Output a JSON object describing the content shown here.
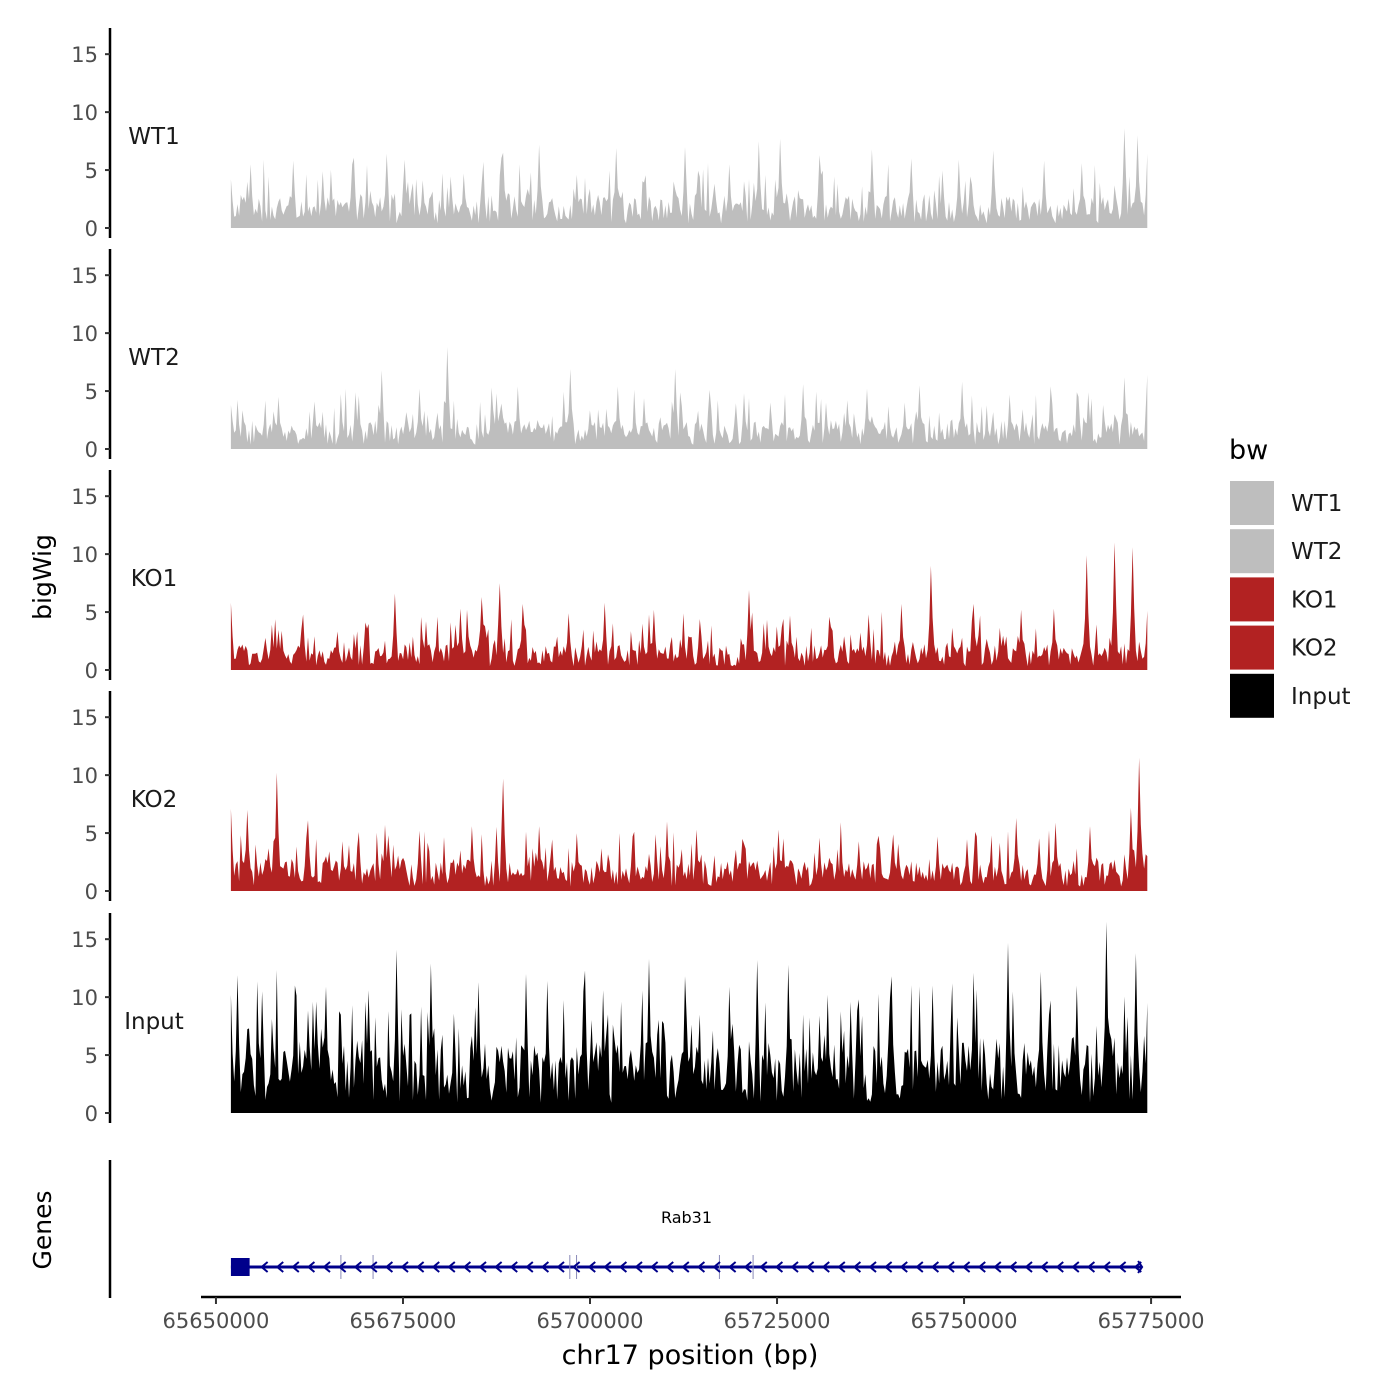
{
  "chart_data": {
    "type": "area",
    "title": "",
    "xlabel": "chr17 position (bp)",
    "ylabel": "bigWig",
    "genes_panel_label": "Genes",
    "xlim": [
      65648000,
      65779000
    ],
    "data_range": [
      65652000,
      65774500
    ],
    "ylim": [
      0,
      17
    ],
    "yticks": [
      0,
      5,
      10,
      15
    ],
    "xticks": [
      65650000,
      65675000,
      65700000,
      65725000,
      65750000,
      65775000
    ],
    "xtick_labels": [
      "65650000",
      "65675000",
      "65700000",
      "65725000",
      "65750000",
      "65775000"
    ],
    "ytick_labels": [
      "0",
      "5",
      "10",
      "15"
    ],
    "legend": {
      "title": "bw",
      "position": "right",
      "entries": [
        {
          "label": "WT1",
          "color": "#bebebe"
        },
        {
          "label": "WT2",
          "color": "#bebebe"
        },
        {
          "label": "KO1",
          "color": "#b22222"
        },
        {
          "label": "KO2",
          "color": "#b22222"
        },
        {
          "label": "Input",
          "color": "#000000"
        }
      ]
    },
    "series": [
      {
        "name": "WT1",
        "color": "#bebebe",
        "summary": {
          "baseline": 1.6,
          "typical_peak": 5,
          "max": 8.6
        },
        "peaks": [
          [
            65652000,
            4.2
          ],
          [
            65654700,
            5.5
          ],
          [
            65660400,
            5.8
          ],
          [
            65664200,
            4.9
          ],
          [
            65668400,
            5.6
          ],
          [
            65672800,
            6.4
          ],
          [
            65675300,
            5.9
          ],
          [
            65683100,
            4.7
          ],
          [
            65688400,
            6.5
          ],
          [
            65693300,
            7.2
          ],
          [
            65703500,
            6.9
          ],
          [
            65712600,
            7.0
          ],
          [
            65718600,
            5.5
          ],
          [
            65722500,
            7.5
          ],
          [
            65725500,
            7.7
          ],
          [
            65730600,
            6.3
          ],
          [
            65737700,
            6.8
          ],
          [
            65742900,
            6.0
          ],
          [
            65749400,
            5.9
          ],
          [
            65754000,
            6.7
          ],
          [
            65760600,
            5.8
          ],
          [
            65765700,
            5.6
          ],
          [
            65771400,
            8.6
          ],
          [
            65773100,
            8.0
          ],
          [
            65774500,
            6.4
          ]
        ]
      },
      {
        "name": "WT2",
        "color": "#bebebe",
        "summary": {
          "baseline": 1.4,
          "typical_peak": 4.5,
          "max": 8.8
        },
        "peaks": [
          [
            65652000,
            3.8
          ],
          [
            65658300,
            4.5
          ],
          [
            65663200,
            4.1
          ],
          [
            65668700,
            4.9
          ],
          [
            65672100,
            6.8
          ],
          [
            65677100,
            5.2
          ],
          [
            65681000,
            8.8
          ],
          [
            65687500,
            4.8
          ],
          [
            65690300,
            5.4
          ],
          [
            65697400,
            6.9
          ],
          [
            65703800,
            5.4
          ],
          [
            65707300,
            4.4
          ],
          [
            65711300,
            6.9
          ],
          [
            65716000,
            5.1
          ],
          [
            65720700,
            4.8
          ],
          [
            65728400,
            5.6
          ],
          [
            65731600,
            4.0
          ],
          [
            65737100,
            5.2
          ],
          [
            65744100,
            5.5
          ],
          [
            65749700,
            5.8
          ],
          [
            65756100,
            4.7
          ],
          [
            65761600,
            5.4
          ],
          [
            65766700,
            4.9
          ],
          [
            65771400,
            6.2
          ],
          [
            65774500,
            6.4
          ]
        ]
      },
      {
        "name": "KO1",
        "color": "#b22222",
        "summary": {
          "baseline": 1.3,
          "typical_peak": 4.5,
          "max": 11
        },
        "peaks": [
          [
            65652000,
            5.8
          ],
          [
            65657400,
            3.9
          ],
          [
            65661700,
            4.3
          ],
          [
            65666200,
            3.2
          ],
          [
            65669900,
            4.1
          ],
          [
            65673900,
            6.6
          ],
          [
            65678100,
            4.2
          ],
          [
            65682700,
            5.3
          ],
          [
            65685500,
            6.3
          ],
          [
            65687900,
            7.5
          ],
          [
            65691000,
            5.7
          ],
          [
            65697200,
            4.9
          ],
          [
            65702000,
            5.8
          ],
          [
            65708600,
            5.2
          ],
          [
            65714600,
            4.4
          ],
          [
            65721200,
            6.9
          ],
          [
            65726700,
            4.7
          ],
          [
            65731900,
            4.6
          ],
          [
            65737300,
            4.8
          ],
          [
            65741700,
            5.7
          ],
          [
            65745500,
            9.0
          ],
          [
            65751300,
            5.7
          ],
          [
            65757600,
            5.2
          ],
          [
            65762000,
            5.3
          ],
          [
            65766500,
            9.9
          ],
          [
            65770100,
            11.0
          ],
          [
            65772600,
            10.6
          ],
          [
            65774500,
            5.1
          ]
        ]
      },
      {
        "name": "KO2",
        "color": "#b22222",
        "summary": {
          "baseline": 1.5,
          "typical_peak": 5,
          "max": 11.5
        },
        "peaks": [
          [
            65652000,
            7.1
          ],
          [
            65654100,
            7.0
          ],
          [
            65658100,
            10.2
          ],
          [
            65662300,
            6.1
          ],
          [
            65666900,
            4.3
          ],
          [
            65672500,
            5.7
          ],
          [
            65677300,
            5.2
          ],
          [
            65684200,
            5.6
          ],
          [
            65688400,
            9.7
          ],
          [
            65693100,
            5.6
          ],
          [
            65698200,
            5.0
          ],
          [
            65705600,
            4.7
          ],
          [
            65710300,
            6.0
          ],
          [
            65714300,
            5.3
          ],
          [
            65720400,
            4.5
          ],
          [
            65725200,
            5.3
          ],
          [
            65730600,
            4.6
          ],
          [
            65735900,
            4.3
          ],
          [
            65740500,
            4.9
          ],
          [
            65746400,
            4.7
          ],
          [
            65751500,
            5.1
          ],
          [
            65757000,
            6.3
          ],
          [
            65762300,
            5.9
          ],
          [
            65766900,
            5.6
          ],
          [
            65772300,
            7.2
          ],
          [
            65773500,
            11.5
          ],
          [
            65774500,
            3.0
          ]
        ]
      },
      {
        "name": "Input",
        "color": "#000000",
        "summary": {
          "baseline": 3.5,
          "typical_peak": 10,
          "max": 16.5
        },
        "peaks": [
          [
            65652000,
            10.2
          ],
          [
            65652800,
            11.9
          ],
          [
            65656200,
            10.5
          ],
          [
            65660500,
            11.0
          ],
          [
            65664700,
            10.9
          ],
          [
            65670300,
            10.6
          ],
          [
            65674100,
            14.1
          ],
          [
            65678700,
            12.9
          ],
          [
            65685100,
            11.3
          ],
          [
            65691500,
            12.0
          ],
          [
            65694400,
            11.4
          ],
          [
            65701800,
            10.6
          ],
          [
            65707900,
            13.3
          ],
          [
            65712600,
            11.8
          ],
          [
            65718600,
            10.9
          ],
          [
            65722400,
            13.2
          ],
          [
            65726500,
            12.8
          ],
          [
            65731800,
            10.2
          ],
          [
            65736000,
            9.8
          ],
          [
            65740400,
            11.8
          ],
          [
            65745700,
            11.0
          ],
          [
            65751300,
            12.1
          ],
          [
            65755900,
            14.7
          ],
          [
            65760300,
            12.2
          ],
          [
            65765100,
            11.0
          ],
          [
            65769000,
            16.5
          ],
          [
            65772900,
            13.8
          ],
          [
            65774500,
            9.5
          ]
        ]
      }
    ],
    "genes": [
      {
        "name": "Rab31",
        "strand": "-",
        "start": 65652000,
        "end": 65773800,
        "exon_boxes": [
          [
            65652000,
            65654500
          ]
        ],
        "junction_ticks": [
          65666700,
          65671000,
          65697300,
          65698200,
          65717300,
          65721800
        ]
      }
    ],
    "gene_color": "#00008b"
  }
}
